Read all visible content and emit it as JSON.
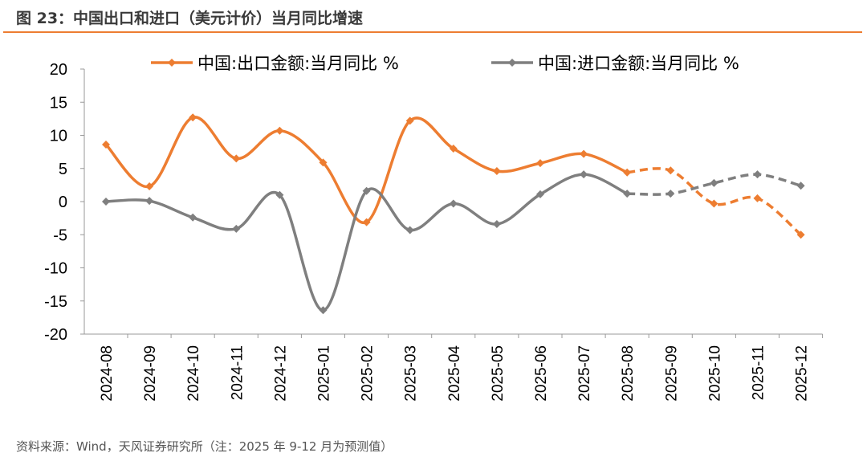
{
  "title": "图 23：中国出口和进口（美元计价）当月同比增速",
  "source": "资料来源：Wind，天风证券研究所（注：2025 年 9-12 月为预测值）",
  "chart_data": {
    "type": "line",
    "categories": [
      "2024-08",
      "2024-09",
      "2024-10",
      "2024-11",
      "2024-12",
      "2025-01",
      "2025-02",
      "2025-03",
      "2025-04",
      "2025-05",
      "2025-06",
      "2025-07",
      "2025-08",
      "2025-09",
      "2025-10",
      "2025-11",
      "2025-12"
    ],
    "ylim": [
      -20,
      20
    ],
    "yticks": [
      20,
      15,
      10,
      5,
      0,
      -5,
      -10,
      -15,
      -20
    ],
    "grid": false,
    "legend_position": "top",
    "forecast_start": "2025-08",
    "series": [
      {
        "name": "中国:出口金额:当月同比 %",
        "color": "#ED7D31",
        "values": [
          8.6,
          2.3,
          12.7,
          6.5,
          10.7,
          5.9,
          -3.1,
          12.2,
          8.0,
          4.6,
          5.8,
          7.2,
          4.4,
          4.7,
          -0.3,
          0.5,
          -5.0
        ]
      },
      {
        "name": "中国:进口金额:当月同比 %",
        "color": "#7F7F7F",
        "values": [
          0.0,
          0.1,
          -2.4,
          -4.1,
          1.0,
          -16.4,
          1.6,
          -4.3,
          -0.3,
          -3.4,
          1.1,
          4.1,
          1.2,
          1.2,
          2.8,
          4.1,
          2.4
        ]
      }
    ]
  }
}
